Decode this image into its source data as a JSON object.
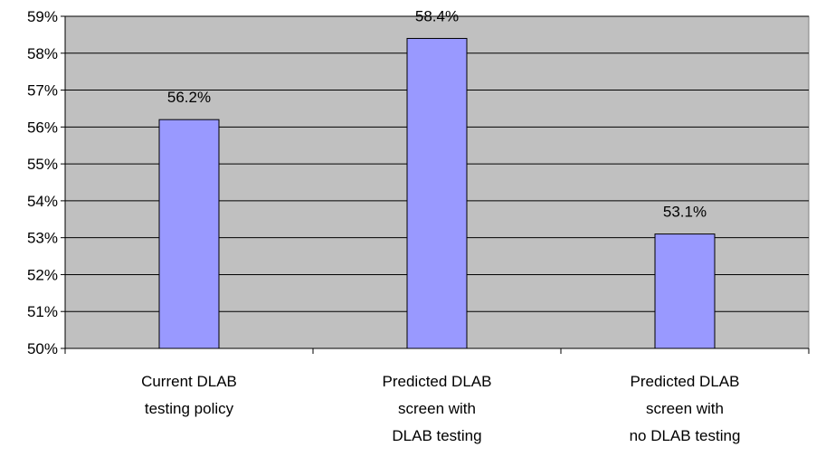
{
  "chart_data": {
    "type": "bar",
    "title": "",
    "xlabel": "",
    "ylabel": "",
    "categories": [
      [
        "Current DLAB",
        "testing policy"
      ],
      [
        "Predicted DLAB",
        "screen with",
        "DLAB testing"
      ],
      [
        "Predicted DLAB",
        "screen with",
        "no DLAB testing"
      ]
    ],
    "values": [
      56.2,
      58.4,
      53.1
    ],
    "data_labels": [
      "56.2%",
      "58.4%",
      "53.1%"
    ],
    "ylim": [
      50,
      59
    ],
    "yticks": [
      50,
      51,
      52,
      53,
      54,
      55,
      56,
      57,
      58,
      59
    ],
    "ytick_labels": [
      "50%",
      "51%",
      "52%",
      "53%",
      "54%",
      "55%",
      "56%",
      "57%",
      "58%",
      "59%"
    ],
    "grid": true,
    "legend": "none",
    "colors": {
      "plot_background": "#c0c0c0",
      "bar_fill": "#9999ff",
      "bar_stroke": "#000000",
      "gridline": "#000000"
    }
  }
}
